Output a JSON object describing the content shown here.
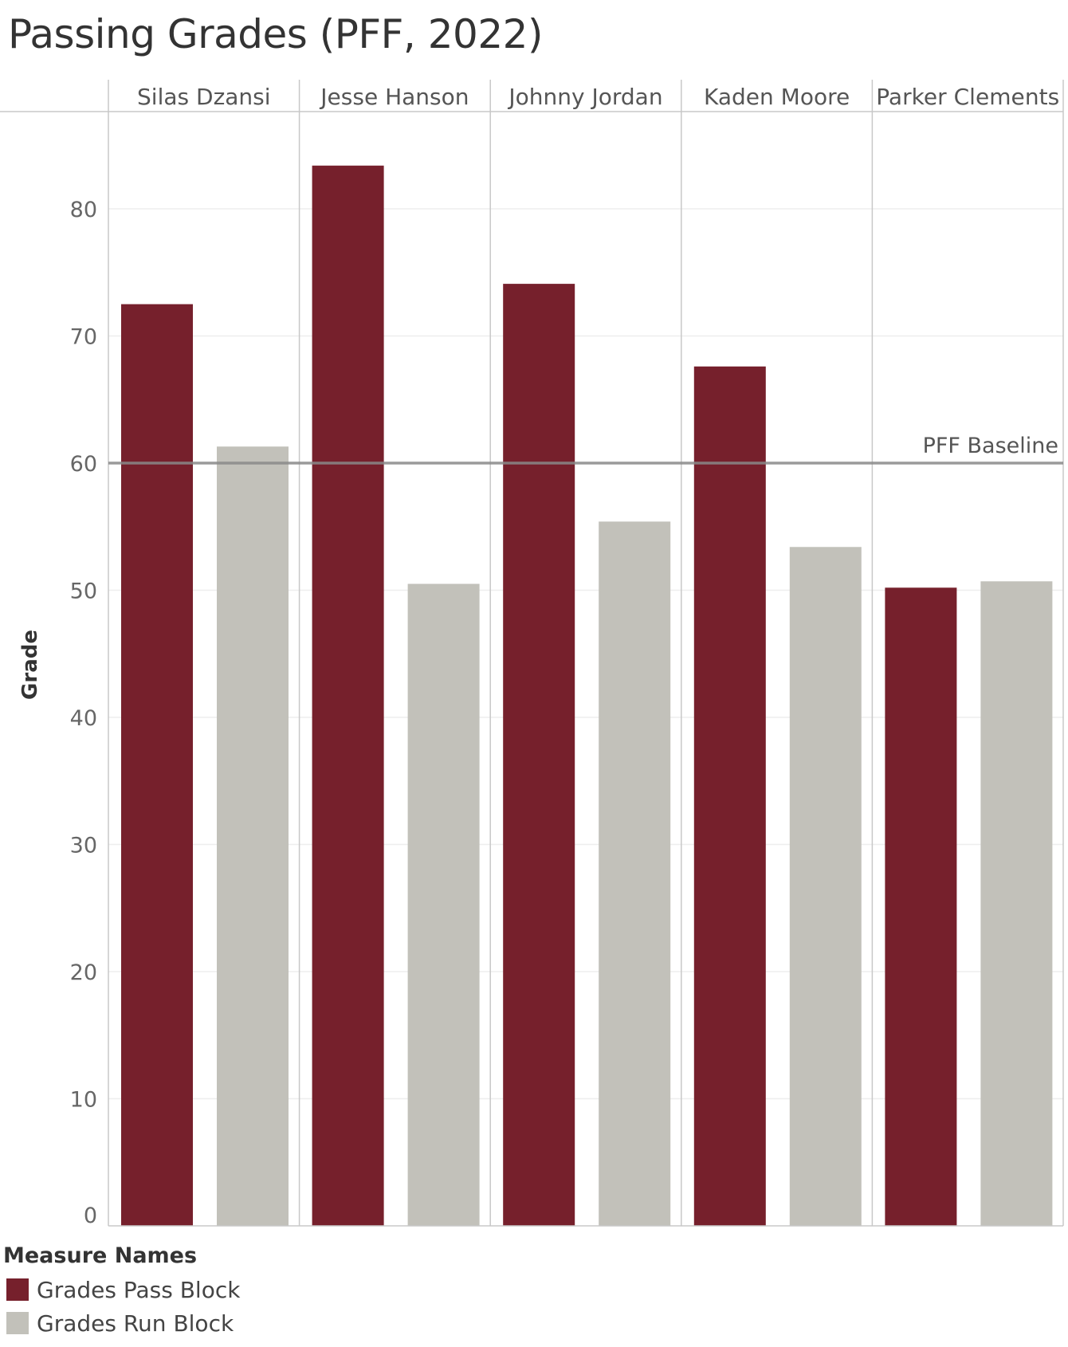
{
  "title": "Passing Grades (PFF, 2022)",
  "chart_data": {
    "type": "bar",
    "title": "Passing Grades (PFF, 2022)",
    "xlabel": "",
    "ylabel": "Grade",
    "ylim": [
      0,
      87
    ],
    "yticks": [
      0,
      10,
      20,
      30,
      40,
      50,
      60,
      70,
      80
    ],
    "categories": [
      "Silas Dzansi",
      "Jesse Hanson",
      "Johnny Jordan",
      "Kaden Moore",
      "Parker Clements"
    ],
    "series": [
      {
        "name": "Grades Pass Block",
        "color": "#76202c",
        "values": [
          72.5,
          83.4,
          74.1,
          67.6,
          50.2
        ]
      },
      {
        "name": "Grades Run Block",
        "color": "#c2c1ba",
        "values": [
          61.3,
          50.5,
          55.4,
          53.4,
          50.7
        ]
      }
    ],
    "reference_line": {
      "label": "PFF Baseline",
      "value": 60,
      "color": "#8a8a8a"
    },
    "grid": true,
    "legend_position": "bottom-left",
    "legend_title": "Measure Names"
  }
}
